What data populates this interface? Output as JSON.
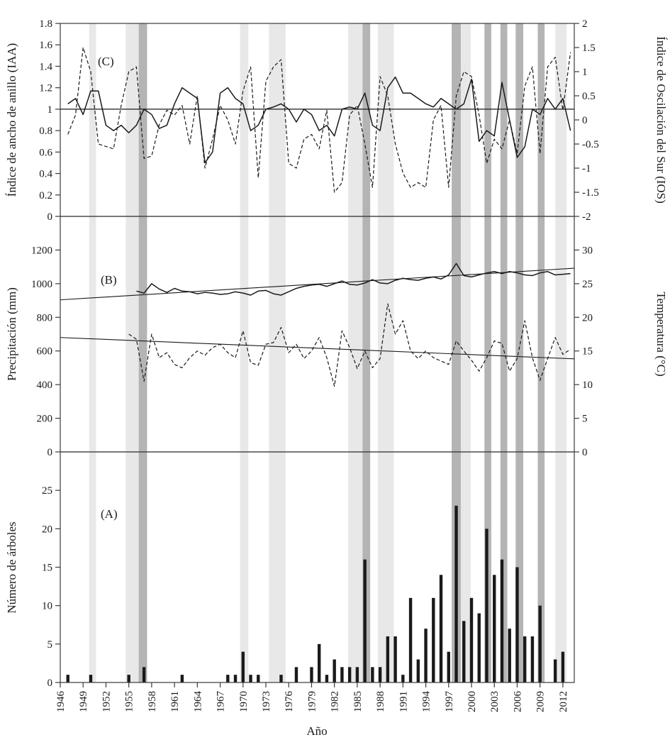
{
  "figure": {
    "xlabel": "Año",
    "panel_labels": {
      "A": "(A)",
      "B": "(B)",
      "C": "(C)"
    },
    "axis_titles": {
      "C_left": "Índice de ancho de anillo (IAA)",
      "C_right": "Índice de Oscilación del Sur (IOS)",
      "B_left": "Precipitación (mm)",
      "B_right": "Temperatura (°C)",
      "A_left": "Número de árboles"
    }
  },
  "colors": {
    "line": "#1a1a1a",
    "bar": "#1a1a1a",
    "axis": "#3a3a3a",
    "band_light": "#e8e8e8",
    "band_dark": "#b4b4b4",
    "background": "#ffffff"
  },
  "x_axis": {
    "label": "Año",
    "min": 1946,
    "max": 2013.5,
    "tick_values": [
      1946,
      1949,
      1952,
      1955,
      1958,
      1961,
      1964,
      1967,
      1970,
      1973,
      1976,
      1979,
      1982,
      1985,
      1988,
      1991,
      1994,
      1997,
      2000,
      2003,
      2006,
      2009,
      2012
    ],
    "tick_labels": [
      "1946",
      "1949",
      "1952",
      "1955",
      "1958",
      "1961",
      "1964",
      "1967",
      "1970",
      "1973",
      "1976",
      "1979",
      "1982",
      "1985",
      "1988",
      "1991",
      "1994",
      "1997",
      "2000",
      "2003",
      "2006",
      "2009",
      "2012"
    ]
  },
  "bands": [
    {
      "from": 1949.8,
      "to": 1950.7,
      "shade": "light"
    },
    {
      "from": 1954.6,
      "to": 1956.3,
      "shade": "light"
    },
    {
      "from": 1956.3,
      "to": 1957.4,
      "shade": "dark"
    },
    {
      "from": 1969.6,
      "to": 1970.7,
      "shade": "light"
    },
    {
      "from": 1973.4,
      "to": 1975.6,
      "shade": "light"
    },
    {
      "from": 1983.8,
      "to": 1985.7,
      "shade": "light"
    },
    {
      "from": 1985.7,
      "to": 1986.7,
      "shade": "dark"
    },
    {
      "from": 1987.7,
      "to": 1989.8,
      "shade": "light"
    },
    {
      "from": 1997.4,
      "to": 1998.6,
      "shade": "dark"
    },
    {
      "from": 1998.6,
      "to": 1999.9,
      "shade": "light"
    },
    {
      "from": 2001.7,
      "to": 2002.6,
      "shade": "dark"
    },
    {
      "from": 2003.8,
      "to": 2004.7,
      "shade": "dark"
    },
    {
      "from": 2005.8,
      "to": 2006.8,
      "shade": "dark"
    },
    {
      "from": 2008.7,
      "to": 2009.6,
      "shade": "dark"
    },
    {
      "from": 2011.0,
      "to": 2012.5,
      "shade": "light"
    }
  ],
  "chart_data": [
    {
      "panel": "C",
      "type": "line",
      "left_axis": {
        "label": "Índice de ancho de anillo (IAA)",
        "min": 0,
        "max": 1.8,
        "tick_values": [
          0,
          0.2,
          0.4,
          0.6,
          0.8,
          1,
          1.2,
          1.4,
          1.6,
          1.8
        ],
        "tick_labels": [
          "0",
          "0.2",
          "0.4",
          "0.6",
          "0.8",
          "1",
          "1.2",
          "1.4",
          "1.6",
          "1.8"
        ]
      },
      "right_axis": {
        "label": "Índice de Oscilación del Sur (IOS)",
        "min": -2,
        "max": 2,
        "tick_values": [
          -2,
          -1.5,
          -1,
          -0.5,
          0,
          0.5,
          1,
          1.5,
          2
        ],
        "tick_labels": [
          "-2",
          "-1.5",
          "-1",
          "-0.5",
          "0",
          "0.5",
          "1",
          "1.5",
          "2"
        ]
      },
      "reference_line": {
        "axis": "left",
        "value": 1
      },
      "series": [
        {
          "id": "iaa",
          "name": "Índice de ancho de anillo (IAA)",
          "style": "solid",
          "axis": "left",
          "start_year": 1947,
          "values": [
            1.05,
            1.1,
            0.95,
            1.17,
            1.17,
            0.85,
            0.8,
            0.85,
            0.78,
            0.85,
            1.0,
            0.95,
            0.82,
            0.85,
            1.05,
            1.2,
            1.15,
            1.1,
            0.5,
            0.6,
            1.15,
            1.2,
            1.1,
            1.05,
            0.8,
            0.85,
            1.0,
            1.02,
            1.05,
            1.0,
            0.88,
            1.0,
            0.95,
            0.8,
            0.85,
            0.75,
            1.0,
            1.02,
            1.0,
            1.15,
            0.85,
            0.8,
            1.2,
            1.3,
            1.15,
            1.15,
            1.1,
            1.05,
            1.02,
            1.1,
            1.05,
            1.0,
            1.05,
            1.28,
            0.7,
            0.8,
            0.75,
            1.25,
            0.9,
            0.55,
            0.65,
            1.0,
            0.95,
            1.1,
            1.0,
            1.1,
            0.8
          ]
        },
        {
          "id": "ios",
          "name": "Índice de Oscilación del Sur (IOS)",
          "style": "dashed",
          "axis": "right",
          "start_year": 1947,
          "values": [
            -0.3,
            0.1,
            1.5,
            1.0,
            -0.5,
            -0.55,
            -0.6,
            0.3,
            1.0,
            1.1,
            -0.8,
            -0.75,
            -0.1,
            0.2,
            0.1,
            0.3,
            -0.5,
            0.5,
            -1.0,
            -0.4,
            0.3,
            0.0,
            -0.5,
            0.6,
            1.1,
            -1.2,
            0.8,
            1.1,
            1.25,
            -0.9,
            -1.0,
            -0.4,
            -0.3,
            -0.6,
            0.2,
            -1.5,
            -1.3,
            0.1,
            0.3,
            -0.5,
            -1.4,
            0.9,
            0.5,
            -0.5,
            -1.1,
            -1.4,
            -1.3,
            -1.4,
            0.0,
            0.3,
            -1.4,
            0.5,
            1.0,
            0.9,
            0.1,
            -0.9,
            -0.4,
            -0.6,
            0.0,
            -0.7,
            0.7,
            1.1,
            -0.7,
            1.1,
            1.3,
            0.2,
            1.4
          ]
        }
      ]
    },
    {
      "panel": "B",
      "type": "line",
      "left_axis": {
        "label": "Precipitación (mm)",
        "min": 0,
        "max": 1400,
        "tick_values": [
          0,
          200,
          400,
          600,
          800,
          1000,
          1200
        ],
        "tick_labels": [
          "0",
          "200",
          "400",
          "600",
          "800",
          "1000",
          "1200"
        ]
      },
      "right_axis": {
        "label": "Temperatura (°C)",
        "min": 0,
        "max": 35,
        "tick_values": [
          0,
          5,
          10,
          15,
          20,
          25,
          30
        ],
        "tick_labels": [
          "0",
          "5",
          "10",
          "15",
          "20",
          "25",
          "30"
        ]
      },
      "series": [
        {
          "id": "temperatura",
          "name": "Temperatura (°C)",
          "style": "solid",
          "axis": "right",
          "start_year": 1956,
          "values": [
            23.9,
            23.6,
            25.0,
            24.2,
            23.7,
            24.3,
            23.9,
            23.8,
            23.5,
            23.7,
            23.6,
            23.4,
            23.5,
            23.8,
            23.6,
            23.3,
            23.9,
            24.0,
            23.5,
            23.3,
            23.8,
            24.3,
            24.6,
            24.8,
            24.9,
            24.6,
            25.0,
            25.4,
            24.9,
            24.8,
            25.1,
            25.6,
            25.1,
            25.0,
            25.5,
            25.8,
            25.6,
            25.5,
            25.8,
            26.0,
            25.7,
            26.3,
            28.0,
            26.2,
            26.0,
            26.3,
            26.6,
            26.8,
            26.5,
            26.8,
            26.6,
            26.3,
            26.2,
            26.6,
            26.8,
            26.3,
            26.4,
            26.5
          ]
        },
        {
          "id": "precipitacion",
          "name": "Precipitación (mm)",
          "style": "dashed",
          "axis": "left",
          "start_year": 1955,
          "values": [
            700,
            670,
            420,
            700,
            560,
            590,
            520,
            500,
            560,
            600,
            575,
            620,
            640,
            590,
            560,
            720,
            530,
            515,
            640,
            650,
            740,
            590,
            640,
            555,
            600,
            680,
            560,
            390,
            720,
            620,
            495,
            600,
            500,
            555,
            880,
            700,
            780,
            600,
            555,
            600,
            560,
            540,
            520,
            660,
            600,
            545,
            480,
            560,
            660,
            645,
            480,
            555,
            780,
            560,
            425,
            555,
            680,
            580,
            610
          ]
        }
      ],
      "trend_lines": [
        {
          "id": "temperatura",
          "axis": "right",
          "x": [
            1946,
            2013.5
          ],
          "y": [
            22.6,
            27.3
          ]
        },
        {
          "id": "precipitacion",
          "axis": "left",
          "x": [
            1946,
            2013.5
          ],
          "y": [
            680,
            553
          ]
        }
      ]
    },
    {
      "panel": "A",
      "type": "bar",
      "left_axis": {
        "label": "Número de árboles",
        "min": 0,
        "max": 30,
        "tick_values": [
          0,
          5,
          10,
          15,
          20,
          25
        ],
        "tick_labels": [
          "0",
          "5",
          "10",
          "15",
          "20",
          "25"
        ]
      },
      "years": [
        1947,
        1950,
        1955,
        1957,
        1962,
        1968,
        1969,
        1970,
        1971,
        1972,
        1975,
        1977,
        1979,
        1980,
        1981,
        1982,
        1983,
        1984,
        1985,
        1986,
        1987,
        1988,
        1989,
        1990,
        1991,
        1992,
        1993,
        1994,
        1995,
        1996,
        1997,
        1998,
        1999,
        2000,
        2001,
        2002,
        2003,
        2004,
        2005,
        2006,
        2007,
        2008,
        2009,
        2011,
        2012
      ],
      "counts": [
        1,
        1,
        1,
        2,
        1,
        1,
        1,
        4,
        1,
        1,
        1,
        2,
        2,
        5,
        1,
        3,
        2,
        2,
        2,
        16,
        2,
        2,
        6,
        6,
        1,
        11,
        3,
        7,
        11,
        14,
        4,
        23,
        8,
        11,
        9,
        20,
        14,
        16,
        7,
        15,
        6,
        6,
        10,
        3,
        4
      ]
    }
  ]
}
